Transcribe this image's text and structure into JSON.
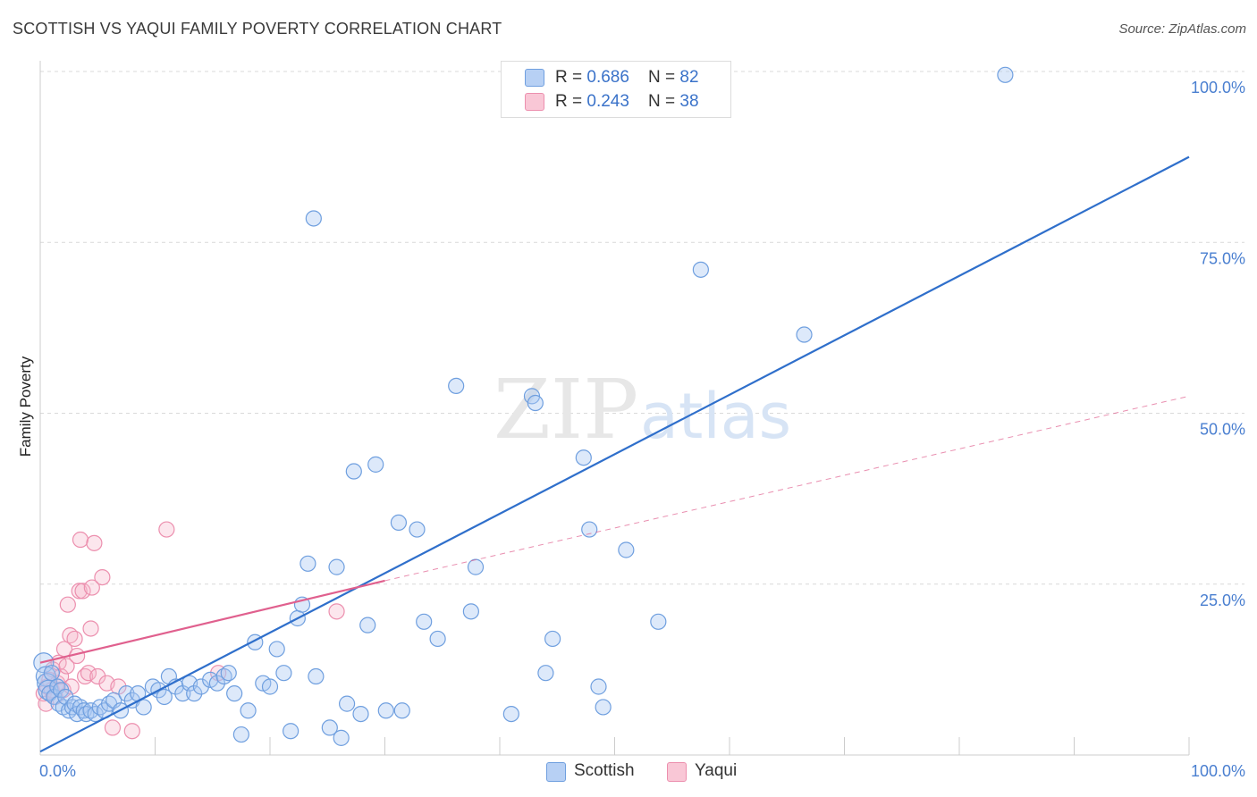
{
  "header": {
    "title": "SCOTTISH VS YAQUI FAMILY POVERTY CORRELATION CHART",
    "source": "Source: ZipAtlas.com"
  },
  "legend": {
    "scottish": {
      "r_label": "R = ",
      "r_value": "0.686",
      "n_label": "N = ",
      "n_value": "82"
    },
    "yaqui": {
      "r_label": "R = ",
      "r_value": "0.243",
      "n_label": "N = ",
      "n_value": "38"
    }
  },
  "bottom_legend": {
    "scottish": "Scottish",
    "yaqui": "Yaqui"
  },
  "watermark": {
    "zip": "ZIP",
    "atlas": "atlas"
  },
  "colors": {
    "scottish_fill": "#a9c7f2",
    "scottish_stroke": "#6f9fdf",
    "scottish_line": "#2f6fcb",
    "yaqui_fill": "#f7b8cc",
    "yaqui_stroke": "#ec8fae",
    "yaqui_line": "#e0608e",
    "grid": "#d9d9d9",
    "tick_text": "#4a7fd0"
  },
  "chart_data": {
    "type": "scatter",
    "title": "SCOTTISH VS YAQUI FAMILY POVERTY CORRELATION CHART",
    "xlabel": "",
    "ylabel": "Family Poverty",
    "xlim": [
      0,
      100
    ],
    "ylim": [
      0,
      100
    ],
    "x_tick_labels": [
      "0.0%",
      "100.0%"
    ],
    "y_tick_labels": [
      "25.0%",
      "50.0%",
      "75.0%",
      "100.0%"
    ],
    "y_ticks": [
      25,
      50,
      75,
      100
    ],
    "grid": true,
    "series": [
      {
        "name": "Scottish",
        "R": 0.686,
        "N": 82,
        "trend": {
          "x": [
            0,
            100
          ],
          "y": [
            0.5,
            87.5
          ],
          "style": "solid"
        },
        "points": [
          [
            0.3,
            13.5
          ],
          [
            0.5,
            11.5
          ],
          [
            0.6,
            10.5
          ],
          [
            0.7,
            9.5
          ],
          [
            0.8,
            9.0
          ],
          [
            1.0,
            12.0
          ],
          [
            1.2,
            8.5
          ],
          [
            1.5,
            10.0
          ],
          [
            1.6,
            7.5
          ],
          [
            1.8,
            9.5
          ],
          [
            2.0,
            7.0
          ],
          [
            2.2,
            8.5
          ],
          [
            2.5,
            6.5
          ],
          [
            2.8,
            7.0
          ],
          [
            3.0,
            7.5
          ],
          [
            3.2,
            6.0
          ],
          [
            3.5,
            7.0
          ],
          [
            3.8,
            6.5
          ],
          [
            4.0,
            6.0
          ],
          [
            4.4,
            6.5
          ],
          [
            4.8,
            6.0
          ],
          [
            5.2,
            7.0
          ],
          [
            5.6,
            6.5
          ],
          [
            6.0,
            7.5
          ],
          [
            6.4,
            8.0
          ],
          [
            7.0,
            6.5
          ],
          [
            7.5,
            9.0
          ],
          [
            8.0,
            8.0
          ],
          [
            8.5,
            9.0
          ],
          [
            9.0,
            7.0
          ],
          [
            9.8,
            10.0
          ],
          [
            10.3,
            9.5
          ],
          [
            10.8,
            8.5
          ],
          [
            11.2,
            11.5
          ],
          [
            11.8,
            10.0
          ],
          [
            12.4,
            9.0
          ],
          [
            13.0,
            10.5
          ],
          [
            13.4,
            9.0
          ],
          [
            14.0,
            10.0
          ],
          [
            14.8,
            11.0
          ],
          [
            15.4,
            10.5
          ],
          [
            16.0,
            11.5
          ],
          [
            16.4,
            12.0
          ],
          [
            16.9,
            9.0
          ],
          [
            17.5,
            3.0
          ],
          [
            18.1,
            6.5
          ],
          [
            18.7,
            16.5
          ],
          [
            19.4,
            10.5
          ],
          [
            20.0,
            10.0
          ],
          [
            20.6,
            15.5
          ],
          [
            21.2,
            12.0
          ],
          [
            21.8,
            3.5
          ],
          [
            22.4,
            20.0
          ],
          [
            22.8,
            22.0
          ],
          [
            23.3,
            28.0
          ],
          [
            23.8,
            78.5
          ],
          [
            24.0,
            11.5
          ],
          [
            25.2,
            4.0
          ],
          [
            25.8,
            27.5
          ],
          [
            26.2,
            2.5
          ],
          [
            26.7,
            7.5
          ],
          [
            27.3,
            41.5
          ],
          [
            27.9,
            6.0
          ],
          [
            28.5,
            19.0
          ],
          [
            29.2,
            42.5
          ],
          [
            30.1,
            6.5
          ],
          [
            31.2,
            34.0
          ],
          [
            31.5,
            6.5
          ],
          [
            32.8,
            33.0
          ],
          [
            33.4,
            19.5
          ],
          [
            34.6,
            17.0
          ],
          [
            36.2,
            54.0
          ],
          [
            37.5,
            21.0
          ],
          [
            37.9,
            27.5
          ],
          [
            41.0,
            6.0
          ],
          [
            42.8,
            52.5
          ],
          [
            43.1,
            51.5
          ],
          [
            44.0,
            12.0
          ],
          [
            44.6,
            17.0
          ],
          [
            47.3,
            43.5
          ],
          [
            47.8,
            33.0
          ],
          [
            48.6,
            10.0
          ],
          [
            49.0,
            7.0
          ],
          [
            51.0,
            30.0
          ],
          [
            53.8,
            19.5
          ],
          [
            57.5,
            71.0
          ],
          [
            66.5,
            61.5
          ],
          [
            84.0,
            99.5
          ]
        ]
      },
      {
        "name": "Yaqui",
        "R": 0.243,
        "N": 38,
        "trend": {
          "x": [
            0,
            30,
            100
          ],
          "y": [
            13.5,
            25.5,
            52.5
          ],
          "style": "solid then dashed after x=30"
        },
        "points": [
          [
            0.3,
            9.0
          ],
          [
            0.5,
            7.5
          ],
          [
            0.6,
            10.0
          ],
          [
            0.8,
            11.0
          ],
          [
            1.0,
            9.5
          ],
          [
            1.1,
            12.5
          ],
          [
            1.3,
            8.5
          ],
          [
            1.5,
            10.5
          ],
          [
            1.6,
            13.5
          ],
          [
            1.8,
            11.5
          ],
          [
            2.0,
            9.5
          ],
          [
            2.1,
            15.5
          ],
          [
            2.3,
            13.0
          ],
          [
            2.4,
            22.0
          ],
          [
            2.6,
            17.5
          ],
          [
            2.7,
            10.0
          ],
          [
            3.0,
            17.0
          ],
          [
            3.2,
            14.5
          ],
          [
            3.4,
            24.0
          ],
          [
            3.5,
            31.5
          ],
          [
            3.7,
            24.0
          ],
          [
            3.9,
            11.5
          ],
          [
            4.2,
            12.0
          ],
          [
            4.4,
            18.5
          ],
          [
            4.5,
            24.5
          ],
          [
            4.7,
            31.0
          ],
          [
            5.0,
            11.5
          ],
          [
            5.4,
            26.0
          ],
          [
            5.8,
            10.5
          ],
          [
            6.3,
            4.0
          ],
          [
            6.8,
            10.0
          ],
          [
            8.0,
            3.5
          ],
          [
            11.0,
            33.0
          ],
          [
            15.5,
            12.0
          ],
          [
            25.8,
            21.0
          ]
        ]
      }
    ]
  }
}
